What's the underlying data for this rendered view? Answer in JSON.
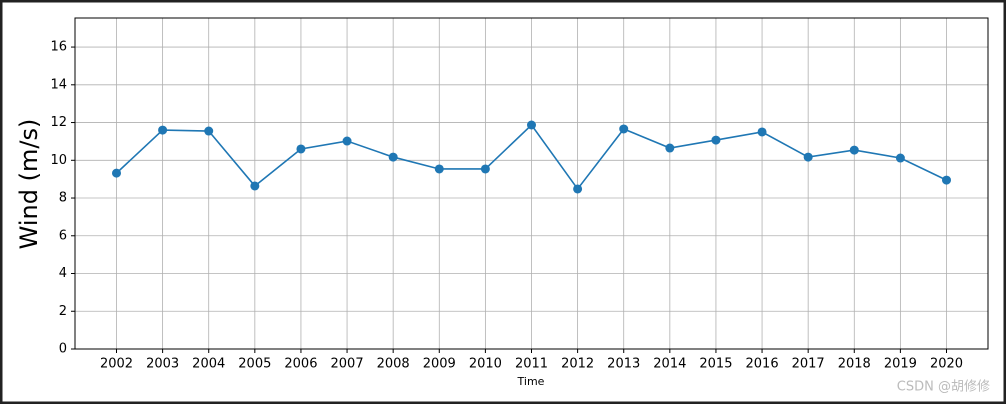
{
  "chart_data": {
    "type": "line",
    "x": [
      2002,
      2003,
      2004,
      2005,
      2006,
      2007,
      2008,
      2009,
      2010,
      2011,
      2012,
      2013,
      2014,
      2015,
      2016,
      2017,
      2018,
      2019,
      2020
    ],
    "series": [
      {
        "name": "Wind",
        "color": "#1f77b4",
        "values": [
          9.32,
          11.6,
          11.55,
          8.64,
          10.6,
          11.02,
          10.17,
          9.54,
          9.54,
          11.87,
          8.48,
          11.66,
          10.65,
          11.07,
          11.5,
          10.17,
          10.54,
          10.12,
          8.95
        ]
      }
    ],
    "xlim": [
      2001.1,
      2020.9
    ],
    "xticks": [
      2002,
      2003,
      2004,
      2005,
      2006,
      2007,
      2008,
      2009,
      2010,
      2011,
      2012,
      2013,
      2014,
      2015,
      2016,
      2017,
      2018,
      2019,
      2020
    ],
    "ylim": [
      0,
      17.54
    ],
    "yticks": [
      0,
      2,
      4,
      6,
      8,
      10,
      12,
      14,
      16
    ],
    "xlabel": "Time",
    "ylabel": "Wind (m/s)",
    "grid": true,
    "watermark": "CSDN @胡修修"
  }
}
